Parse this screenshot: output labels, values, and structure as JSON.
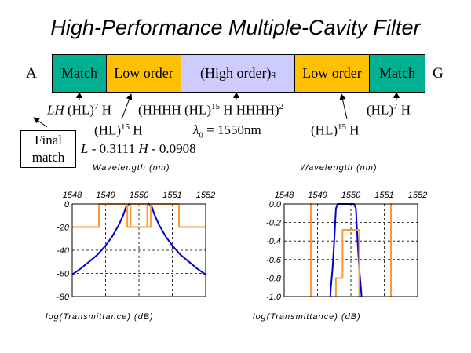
{
  "title": "High-Performance Multiple-Cavity Filter",
  "end_left": "A",
  "end_right": "G",
  "segments": [
    {
      "name": "match-left",
      "label": "Match",
      "color": "#00b090"
    },
    {
      "name": "low-order-left",
      "label": "Low order",
      "color": "#ffc000"
    },
    {
      "name": "high-order",
      "label": "(High order)",
      "sup": "q",
      "color": "#ccccff"
    },
    {
      "name": "low-order-right",
      "label": "Low order",
      "color": "#ffc000"
    },
    {
      "name": "match-right",
      "label": "Match",
      "color": "#00b090"
    }
  ],
  "labels": {
    "lh": "LH",
    "lh_rest": " (HL)",
    "lh_exp": "7",
    "lh_end": " H",
    "center_formula": "(HHHH (HL)",
    "center_exp1": "15",
    "center_mid": " H HHHH)",
    "center_exp2": "2",
    "right_formula": "(HL)",
    "right_exp": "7",
    "right_end": " H",
    "hl15_left": "(HL)",
    "hl15_left_exp": "15",
    "hl15_left_end": " H",
    "lambda_sym": "λ",
    "lambda_sub": "0",
    "lambda_val": " = 1550nm",
    "hl15_right": "(HL)",
    "hl15_right_exp": "15",
    "hl15_right_end": " H",
    "final_match_line1": "Final",
    "final_match_line2": "match",
    "L_sym": "L",
    "L_val": " - 0.3111  ",
    "H_sym": "H",
    "H_val": " - 0.0908"
  },
  "chart_data": [
    {
      "type": "line",
      "title": "",
      "xlabel": "Wavelength (nm)",
      "ylabel": "log(Transmittance) (dB)",
      "xlim": [
        1548,
        1552
      ],
      "ylim": [
        -80,
        0
      ],
      "xticks": [
        "1548",
        "1549",
        "1550",
        "1551",
        "1552"
      ],
      "yticks": [
        "0",
        "-20",
        "-40",
        "-60",
        "-80"
      ],
      "grid": true,
      "series": [
        {
          "color": "#0000cc",
          "x": [
            1548,
            1548.25,
            1548.5,
            1548.75,
            1549,
            1549.2,
            1549.4,
            1549.55,
            1549.62,
            1549.7,
            1550.3,
            1550.38,
            1550.45,
            1550.6,
            1550.8,
            1551,
            1551.25,
            1551.5,
            1551.75,
            1552
          ],
          "y": [
            -61,
            -56,
            -50,
            -44,
            -36,
            -28,
            -18,
            -8,
            -2,
            0,
            0,
            -2,
            -8,
            -18,
            -28,
            -36,
            -44,
            -50,
            -56,
            -61
          ]
        },
        {
          "color": "#ff9933",
          "x": [
            1548,
            1548.8,
            1548.8,
            1549.65,
            1549.65,
            1550.35,
            1550.35,
            1551.2,
            1551.2,
            1552
          ],
          "y": [
            -20,
            -20,
            0,
            0,
            -20,
            -20,
            0,
            0,
            -20,
            -20
          ]
        },
        {
          "color": "#ff9933",
          "x": [
            1549.65,
            1549.75,
            1549.75,
            1550.25,
            1550.25,
            1550.35
          ],
          "y": [
            -20,
            -20,
            0,
            0,
            -20,
            -20
          ]
        }
      ]
    },
    {
      "type": "line",
      "title": "",
      "xlabel": "Wavelength (nm)",
      "ylabel": "log(Transmittance) (dB)",
      "xlim": [
        1548,
        1552
      ],
      "ylim": [
        -1.0,
        0.0
      ],
      "xticks": [
        "1548",
        "1549",
        "1550",
        "1551",
        "1552"
      ],
      "yticks": [
        "0.0",
        "-0.2",
        "-0.4",
        "-0.6",
        "-0.8",
        "-1.0"
      ],
      "grid": true,
      "series": [
        {
          "color": "#0000cc",
          "x": [
            1549.38,
            1549.4,
            1549.45,
            1549.5,
            1549.55,
            1549.6,
            1550.1,
            1550.15,
            1550.2,
            1550.25,
            1550.3,
            1550.32
          ],
          "y": [
            -1.0,
            -0.9,
            -0.7,
            -0.4,
            -0.05,
            0.0,
            0.0,
            -0.05,
            -0.4,
            -0.7,
            -0.9,
            -1.0
          ]
        },
        {
          "color": "#ff9933",
          "x": [
            1548.8,
            1548.8,
            1548.8
          ],
          "y": [
            -1.0,
            0.0,
            -1.0
          ]
        },
        {
          "color": "#ff9933",
          "x": [
            1549.55,
            1549.55,
            1549.75,
            1549.75,
            1550.25,
            1550.25
          ],
          "y": [
            -1.0,
            -0.8,
            -0.8,
            -0.28,
            -0.28,
            -1.0
          ]
        },
        {
          "color": "#ff9933",
          "x": [
            1551.2,
            1551.2,
            1551.2
          ],
          "y": [
            -1.0,
            0.0,
            -1.0
          ]
        }
      ]
    }
  ]
}
